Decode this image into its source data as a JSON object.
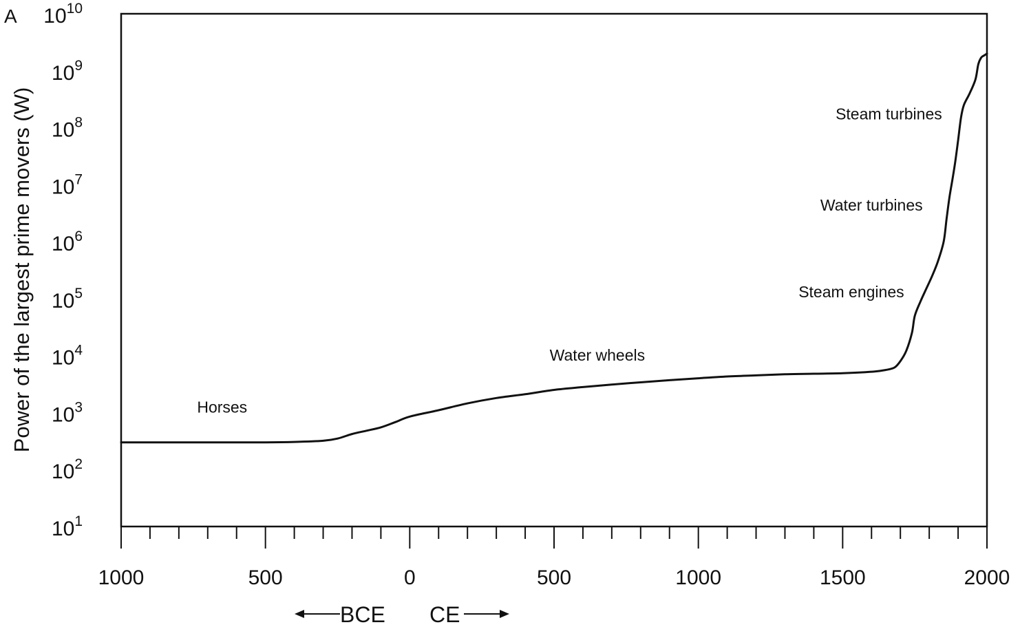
{
  "chart_data": {
    "type": "line",
    "panel_label": "A",
    "xlabel": "",
    "ylabel": "Power of the largest prime movers (W)",
    "y_scale": "log",
    "xlim": [
      -1000,
      2000
    ],
    "ylim": [
      10,
      10000000000
    ],
    "x_tick_values": [
      -1000,
      -500,
      0,
      500,
      1000,
      1500,
      2000
    ],
    "x_tick_labels": [
      "1000",
      "500",
      "0",
      "500",
      "1000",
      "1500",
      "2000"
    ],
    "x_minor_step": 100,
    "y_ticks": [
      {
        "value": 10,
        "base": "10",
        "exp": "1"
      },
      {
        "value": 100,
        "base": "10",
        "exp": "2"
      },
      {
        "value": 1000,
        "base": "10",
        "exp": "3"
      },
      {
        "value": 10000,
        "base": "10",
        "exp": "4"
      },
      {
        "value": 100000,
        "base": "10",
        "exp": "5"
      },
      {
        "value": 1000000,
        "base": "10",
        "exp": "6"
      },
      {
        "value": 10000000,
        "base": "10",
        "exp": "7"
      },
      {
        "value": 100000000,
        "base": "10",
        "exp": "8"
      },
      {
        "value": 1000000000,
        "base": "10",
        "exp": "9"
      },
      {
        "value": 10000000000,
        "base": "10",
        "exp": "10"
      }
    ],
    "era_labels": {
      "bce": "BCE",
      "ce": "CE"
    },
    "grid": false,
    "legend": "none",
    "line_color": "#111111",
    "series": [
      {
        "x": [
          -1000,
          -700,
          -500,
          -400,
          -300,
          -250,
          -200,
          -150,
          -100,
          -50,
          0,
          100,
          200,
          300,
          400,
          500,
          600,
          700,
          800,
          900,
          1000,
          1100,
          1200,
          1300,
          1400,
          1500,
          1600,
          1650,
          1680,
          1700,
          1720,
          1740,
          1750,
          1770,
          1790,
          1810,
          1830,
          1850,
          1860,
          1870,
          1880,
          1890,
          1900,
          1910,
          1920,
          1940,
          1960,
          1970,
          1980,
          1990,
          2000
        ],
        "y": [
          300,
          300,
          300,
          305,
          320,
          350,
          420,
          480,
          550,
          680,
          850,
          1100,
          1450,
          1800,
          2100,
          2500,
          2800,
          3100,
          3400,
          3700,
          4000,
          4300,
          4500,
          4700,
          4800,
          4900,
          5200,
          5600,
          6200,
          8000,
          12000,
          25000,
          50000,
          90000,
          150000,
          250000,
          450000,
          1000000,
          2500000,
          6000000,
          12000000,
          25000000,
          60000000,
          150000000,
          250000000,
          400000000,
          700000000,
          1300000000,
          1700000000,
          1850000000,
          2000000000
        ]
      }
    ],
    "annotations": [
      {
        "text": "Horses",
        "x": -650,
        "y": 1000
      },
      {
        "text": "Water wheels",
        "x": 650,
        "y": 8200
      },
      {
        "text": "Steam engines",
        "x": 1530,
        "y": 105000
      },
      {
        "text": "Water turbines",
        "x": 1600,
        "y": 3500000
      },
      {
        "text": "Steam turbines",
        "x": 1660,
        "y": 140000000
      }
    ]
  }
}
